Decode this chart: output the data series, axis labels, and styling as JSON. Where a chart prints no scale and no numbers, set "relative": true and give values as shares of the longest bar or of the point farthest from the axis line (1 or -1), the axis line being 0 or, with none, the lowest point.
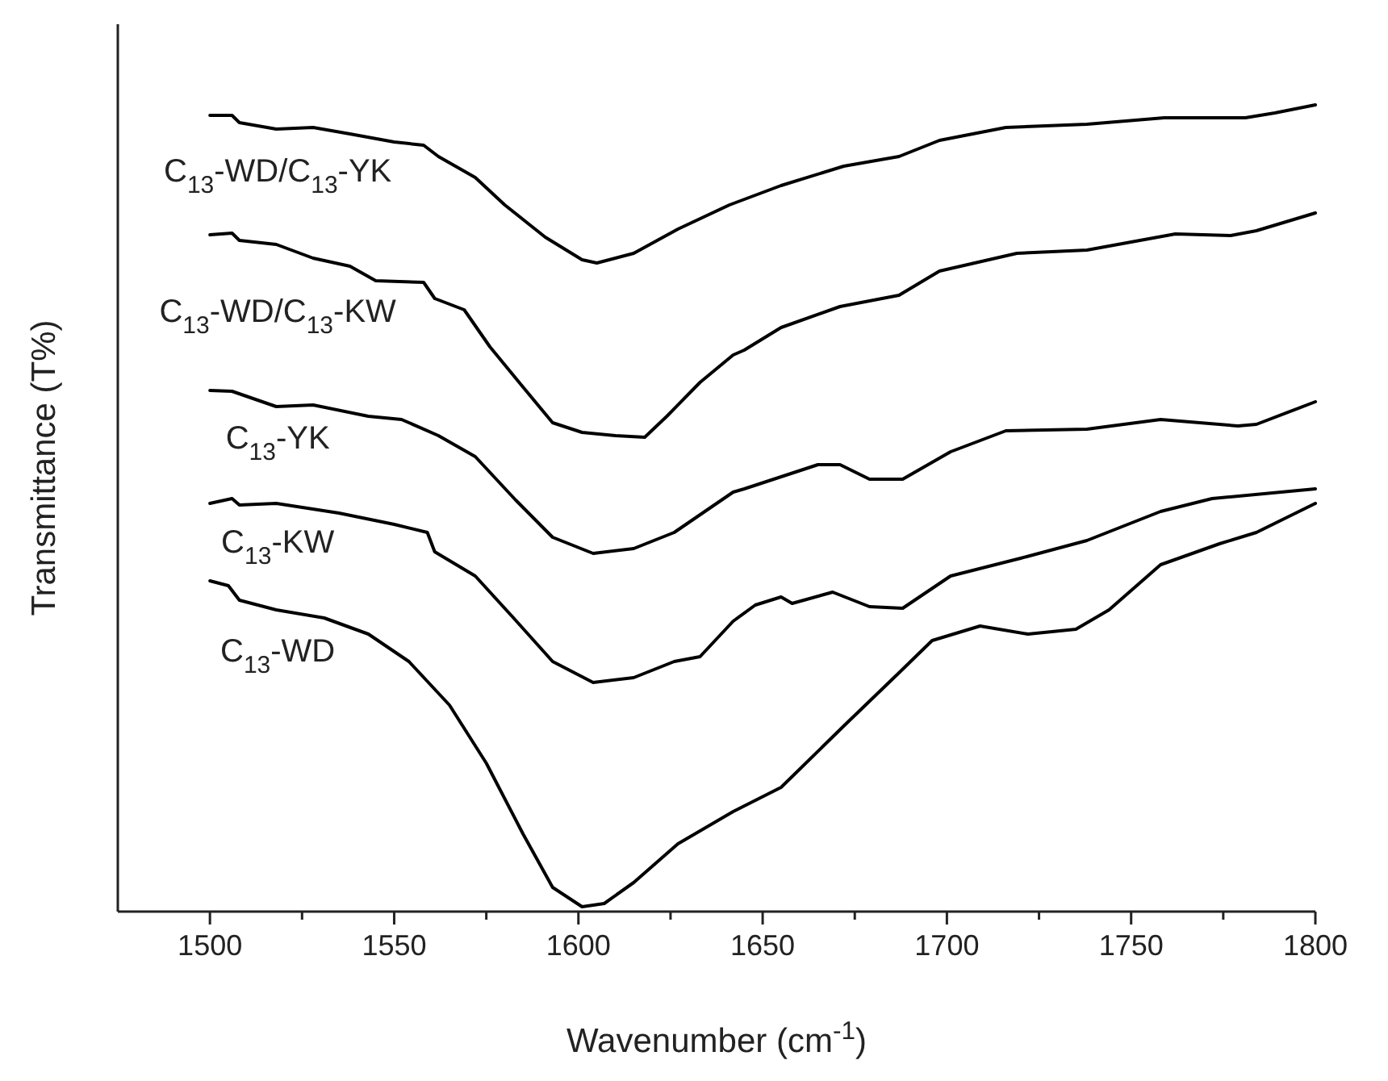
{
  "chart_data": {
    "type": "line",
    "xlabel": "Wavenumber (cm$^{-1}$)",
    "ylabel": "Transmittance (T%)",
    "relative": true,
    "xlim": [
      1475,
      1800
    ],
    "xticks": [
      1500,
      {
        "value": 1525,
        "label": null
      },
      1550,
      {
        "value": 1575,
        "label": null
      },
      1600,
      {
        "value": 1625,
        "label": null
      },
      1650,
      {
        "value": 1675,
        "label": null
      },
      1700,
      {
        "value": 1725,
        "label": null
      },
      1750,
      {
        "value": 1775,
        "label": null
      },
      1800
    ],
    "grid": false,
    "marker": "none",
    "line_style": "solid",
    "series": [
      {
        "name": "C$_{13}$-WD/C$_{13}$-YK",
        "color": "#000000",
        "x": [
          1500,
          1506,
          1508,
          1518,
          1528,
          1538,
          1550,
          1558,
          1562,
          1572,
          1580,
          1591,
          1601,
          1605,
          1615,
          1627,
          1641,
          1655,
          1672,
          1687,
          1698,
          1716,
          1738,
          1759,
          1781,
          1789,
          1800
        ],
        "values": [
          0.987,
          0.987,
          0.978,
          0.97,
          0.972,
          0.964,
          0.954,
          0.95,
          0.936,
          0.91,
          0.876,
          0.836,
          0.808,
          0.804,
          0.816,
          0.846,
          0.876,
          0.9,
          0.924,
          0.936,
          0.956,
          0.972,
          0.976,
          0.984,
          0.984,
          0.99,
          1.0
        ]
      },
      {
        "name": "C$_{13}$-WD/C$_{13}$-KW",
        "color": "#000000",
        "x": [
          1500,
          1506,
          1508,
          1518,
          1528,
          1538,
          1545,
          1558,
          1561,
          1569,
          1576,
          1585,
          1593,
          1601,
          1610,
          1618,
          1624,
          1633,
          1642,
          1645,
          1655,
          1671,
          1687,
          1698,
          1719,
          1738,
          1762,
          1777,
          1784,
          1800
        ],
        "values": [
          0.839,
          0.841,
          0.832,
          0.827,
          0.81,
          0.8,
          0.782,
          0.78,
          0.76,
          0.746,
          0.7,
          0.65,
          0.606,
          0.594,
          0.59,
          0.588,
          0.614,
          0.656,
          0.69,
          0.696,
          0.724,
          0.75,
          0.764,
          0.794,
          0.816,
          0.82,
          0.84,
          0.838,
          0.844,
          0.866
        ]
      },
      {
        "name": "C$_{13}$-YK",
        "color": "#000000",
        "x": [
          1500,
          1506,
          1518,
          1528,
          1543,
          1552,
          1562,
          1572,
          1583,
          1593,
          1604,
          1615,
          1626,
          1642,
          1645,
          1665,
          1671,
          1679,
          1688,
          1701,
          1716,
          1738,
          1758,
          1779,
          1784,
          1800
        ],
        "values": [
          0.646,
          0.645,
          0.626,
          0.628,
          0.614,
          0.61,
          0.59,
          0.564,
          0.51,
          0.464,
          0.444,
          0.45,
          0.47,
          0.52,
          0.524,
          0.554,
          0.554,
          0.536,
          0.536,
          0.57,
          0.596,
          0.598,
          0.61,
          0.602,
          0.604,
          0.632
        ]
      },
      {
        "name": "C$_{13}$-KW",
        "color": "#000000",
        "x": [
          1500,
          1506,
          1508,
          1518,
          1535,
          1550,
          1559,
          1561,
          1572,
          1582,
          1593,
          1604,
          1615,
          1626,
          1633,
          1642,
          1648,
          1655,
          1658,
          1669,
          1679,
          1688,
          1701,
          1720,
          1738,
          1758,
          1772,
          1800
        ],
        "values": [
          0.506,
          0.512,
          0.504,
          0.506,
          0.494,
          0.48,
          0.47,
          0.446,
          0.416,
          0.366,
          0.31,
          0.284,
          0.29,
          0.31,
          0.316,
          0.36,
          0.38,
          0.39,
          0.382,
          0.396,
          0.378,
          0.376,
          0.416,
          0.438,
          0.46,
          0.496,
          0.512,
          0.524
        ]
      },
      {
        "name": "C$_{13}$-WD",
        "color": "#000000",
        "x": [
          1500,
          1505,
          1508,
          1518,
          1531,
          1543,
          1554,
          1565,
          1575,
          1585,
          1593,
          1601,
          1607,
          1615,
          1627,
          1642,
          1655,
          1672,
          1687,
          1696,
          1709,
          1722,
          1735,
          1744,
          1758,
          1774,
          1784,
          1800
        ],
        "values": [
          0.41,
          0.404,
          0.386,
          0.374,
          0.364,
          0.344,
          0.31,
          0.256,
          0.184,
          0.096,
          0.03,
          0.006,
          0.01,
          0.036,
          0.084,
          0.124,
          0.154,
          0.23,
          0.296,
          0.336,
          0.354,
          0.344,
          0.35,
          0.374,
          0.43,
          0.456,
          0.47,
          0.506
        ]
      }
    ]
  }
}
